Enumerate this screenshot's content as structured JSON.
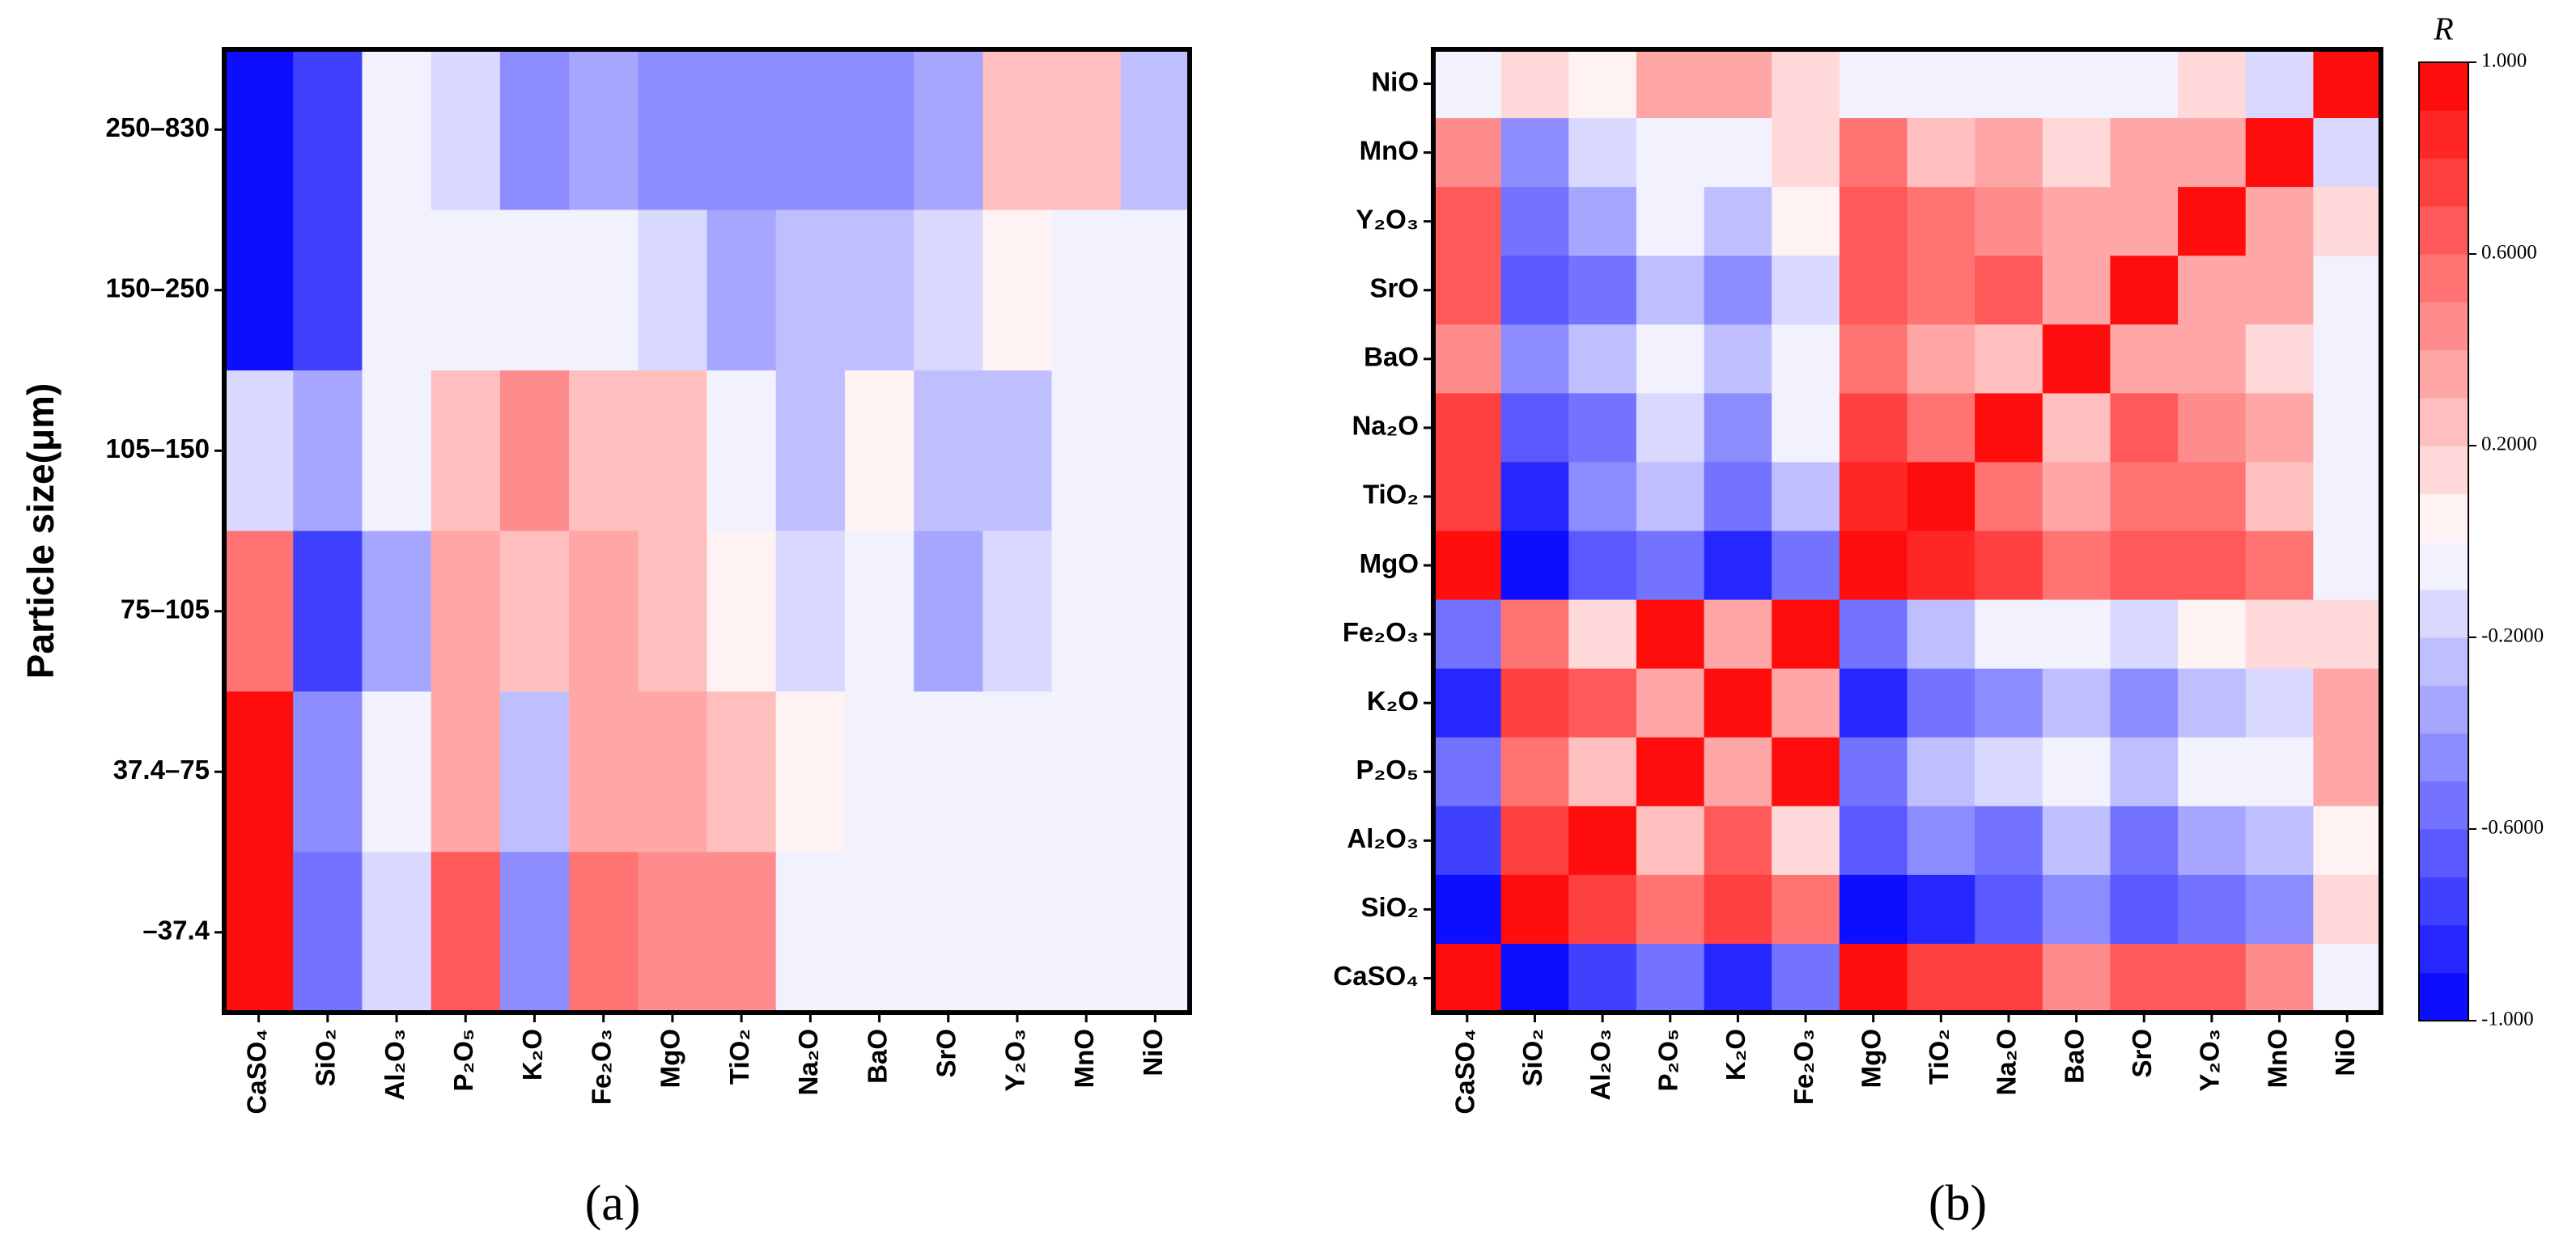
{
  "chart_data": [
    {
      "type": "heatmap",
      "panel_label": "(a)",
      "y_label": "Particle size(μm)",
      "x": [
        "CaSO₄",
        "SiO₂",
        "Al₂O₃",
        "P₂O₅",
        "K₂O",
        "Fe₂O₃",
        "MgO",
        "TiO₂",
        "Na₂O",
        "BaO",
        "SrO",
        "Y₂O₃",
        "MnO",
        "NiO"
      ],
      "y": [
        "250–830",
        "150–250",
        "105–150",
        "75–105",
        "37.4–75",
        "–37.4"
      ],
      "values": [
        [
          -1,
          -0.75,
          -0.05,
          -0.15,
          -0.45,
          -0.35,
          -0.5,
          -0.5,
          -0.45,
          -0.45,
          -0.4,
          0.2,
          0.2,
          -0.25
        ],
        [
          -0.95,
          -0.75,
          -0.05,
          -0.05,
          -0.1,
          -0.05,
          -0.2,
          -0.4,
          -0.3,
          -0.3,
          -0.2,
          0.05,
          -0.05,
          -0.05
        ],
        [
          -0.2,
          -0.4,
          -0.1,
          0.2,
          0.45,
          0.2,
          0.2,
          -0.1,
          -0.3,
          0.05,
          -0.3,
          -0.3,
          -0.1,
          -0.1
        ],
        [
          0.5,
          -0.75,
          -0.35,
          0.35,
          0.2,
          0.3,
          0.2,
          0.05,
          -0.2,
          -0.1,
          -0.35,
          -0.2,
          -0.1,
          -0.1
        ],
        [
          0.9,
          -0.45,
          -0.1,
          0.35,
          -0.3,
          0.35,
          0.35,
          0.2,
          0.05,
          -0.05,
          -0.05,
          -0.05,
          -0.05,
          -0.05
        ],
        [
          0.9,
          -0.6,
          -0.2,
          0.6,
          -0.5,
          0.5,
          0.45,
          0.45,
          -0.05,
          -0.05,
          -0.1,
          -0.05,
          -0.1,
          -0.05
        ]
      ],
      "zlim": [
        -1,
        1
      ],
      "colormap": [
        "#0000ff",
        "#ffffff",
        "#ff0000"
      ],
      "levels": 20
    },
    {
      "type": "heatmap",
      "panel_label": "(b)",
      "colorbar_label": "R",
      "x": [
        "CaSO₄",
        "SiO₂",
        "Al₂O₃",
        "P₂O₅",
        "K₂O",
        "Fe₂O₃",
        "MgO",
        "TiO₂",
        "Na₂O",
        "BaO",
        "SrO",
        "Y₂O₃",
        "MnO",
        "NiO"
      ],
      "y": [
        "NiO",
        "MnO",
        "Y₂O₃",
        "SrO",
        "BaO",
        "Na₂O",
        "TiO₂",
        "MgO",
        "Fe₂O₃",
        "K₂O",
        "P₂O₅",
        "Al₂O₃",
        "SiO₂",
        "CaSO₄"
      ],
      "values": [
        [
          -0.1,
          0.15,
          0.05,
          0.3,
          0.3,
          0.15,
          -0.1,
          -0.05,
          -0.1,
          -0.1,
          -0.05,
          0.15,
          -0.15,
          1
        ],
        [
          0.45,
          -0.45,
          -0.2,
          -0.05,
          -0.1,
          0.15,
          0.5,
          0.25,
          0.35,
          0.15,
          0.35,
          0.35,
          1,
          -0.15
        ],
        [
          0.6,
          -0.6,
          -0.4,
          -0.1,
          -0.25,
          0.05,
          0.6,
          0.5,
          0.4,
          0.35,
          0.35,
          1,
          0.35,
          0.15
        ],
        [
          0.65,
          -0.65,
          -0.55,
          -0.25,
          -0.45,
          -0.2,
          0.65,
          0.5,
          0.6,
          0.35,
          1,
          0.35,
          0.35,
          -0.05
        ],
        [
          0.45,
          -0.45,
          -0.3,
          -0.1,
          -0.25,
          -0.1,
          0.5,
          0.35,
          0.2,
          1,
          0.35,
          0.35,
          0.15,
          -0.1
        ],
        [
          0.7,
          -0.65,
          -0.55,
          -0.2,
          -0.45,
          -0.1,
          0.75,
          0.5,
          1,
          0.2,
          0.6,
          0.4,
          0.35,
          -0.1
        ],
        [
          0.75,
          -0.8,
          -0.45,
          -0.3,
          -0.55,
          -0.3,
          0.8,
          1,
          0.5,
          0.35,
          0.5,
          0.5,
          0.25,
          -0.05
        ],
        [
          0.95,
          -0.95,
          -0.7,
          -0.55,
          -0.8,
          -0.55,
          1,
          0.8,
          0.75,
          0.5,
          0.65,
          0.6,
          0.5,
          -0.1
        ],
        [
          -0.55,
          0.5,
          0.15,
          0.95,
          0.3,
          1,
          -0.55,
          -0.3,
          -0.1,
          -0.1,
          -0.15,
          0.05,
          0.15,
          0.15
        ],
        [
          -0.8,
          0.75,
          0.65,
          0.3,
          1,
          0.3,
          -0.8,
          -0.55,
          -0.45,
          -0.25,
          -0.45,
          -0.3,
          -0.15,
          0.3
        ],
        [
          -0.55,
          0.5,
          0.2,
          1,
          0.3,
          0.95,
          -0.55,
          -0.3,
          -0.2,
          -0.1,
          -0.25,
          -0.1,
          -0.05,
          0.3
        ],
        [
          -0.75,
          0.7,
          1,
          0.2,
          0.65,
          0.15,
          -0.7,
          -0.45,
          -0.55,
          -0.3,
          -0.55,
          -0.4,
          -0.25,
          0.05
        ],
        [
          -0.95,
          1,
          0.7,
          0.5,
          0.75,
          0.5,
          -0.95,
          -0.8,
          -0.65,
          -0.45,
          -0.65,
          -0.6,
          -0.45,
          0.15
        ],
        [
          1,
          -0.95,
          -0.75,
          -0.55,
          -0.8,
          -0.55,
          0.95,
          0.75,
          0.7,
          0.45,
          0.65,
          0.6,
          0.45,
          -0.1
        ]
      ],
      "zlim": [
        -1,
        1
      ],
      "colormap": [
        "#0000ff",
        "#ffffff",
        "#ff0000"
      ],
      "levels": 20,
      "zticks": [
        {
          "value": 1,
          "label": "1.000"
        },
        {
          "value": 0.6,
          "label": "0.6000"
        },
        {
          "value": 0.2,
          "label": "0.2000"
        },
        {
          "value": -0.2,
          "label": "-0.2000"
        },
        {
          "value": -0.6,
          "label": "-0.6000"
        },
        {
          "value": -1,
          "label": "-1.000"
        }
      ]
    }
  ]
}
